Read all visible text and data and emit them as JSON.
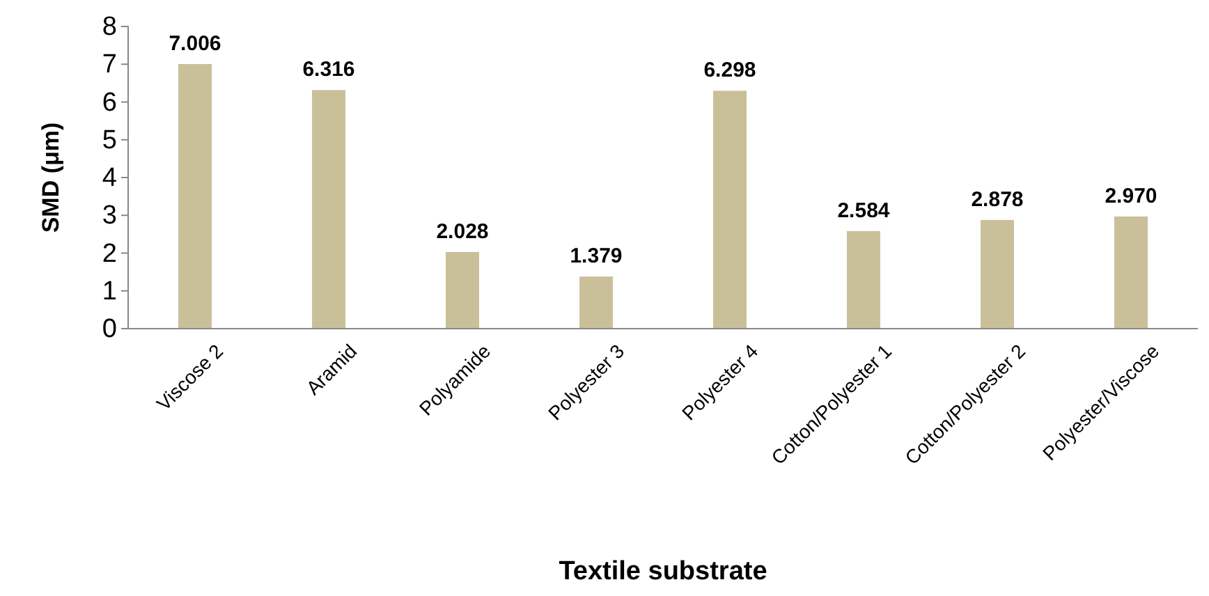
{
  "chart_data": {
    "type": "bar",
    "xlabel": "Textile substrate",
    "ylabel": "SMD  (μm)",
    "categories": [
      "Viscose 2",
      "Aramid",
      "Polyamide",
      "Polyester 3",
      "Polyester 4",
      "Cotton/Polyester 1",
      "Cotton/Polyester 2",
      "Polyester/Viscose"
    ],
    "values": [
      7.006,
      6.316,
      2.028,
      1.379,
      6.298,
      2.584,
      2.878,
      2.97
    ],
    "value_labels": [
      "7.006",
      "6.316",
      "2.028",
      "1.379",
      "6.298",
      "2.584",
      "2.878",
      "2.970"
    ],
    "color": "#c9c09a",
    "ylim": [
      0,
      8
    ],
    "yticks": [
      0,
      1,
      2,
      3,
      4,
      5,
      6,
      7,
      8
    ],
    "grid": false
  }
}
